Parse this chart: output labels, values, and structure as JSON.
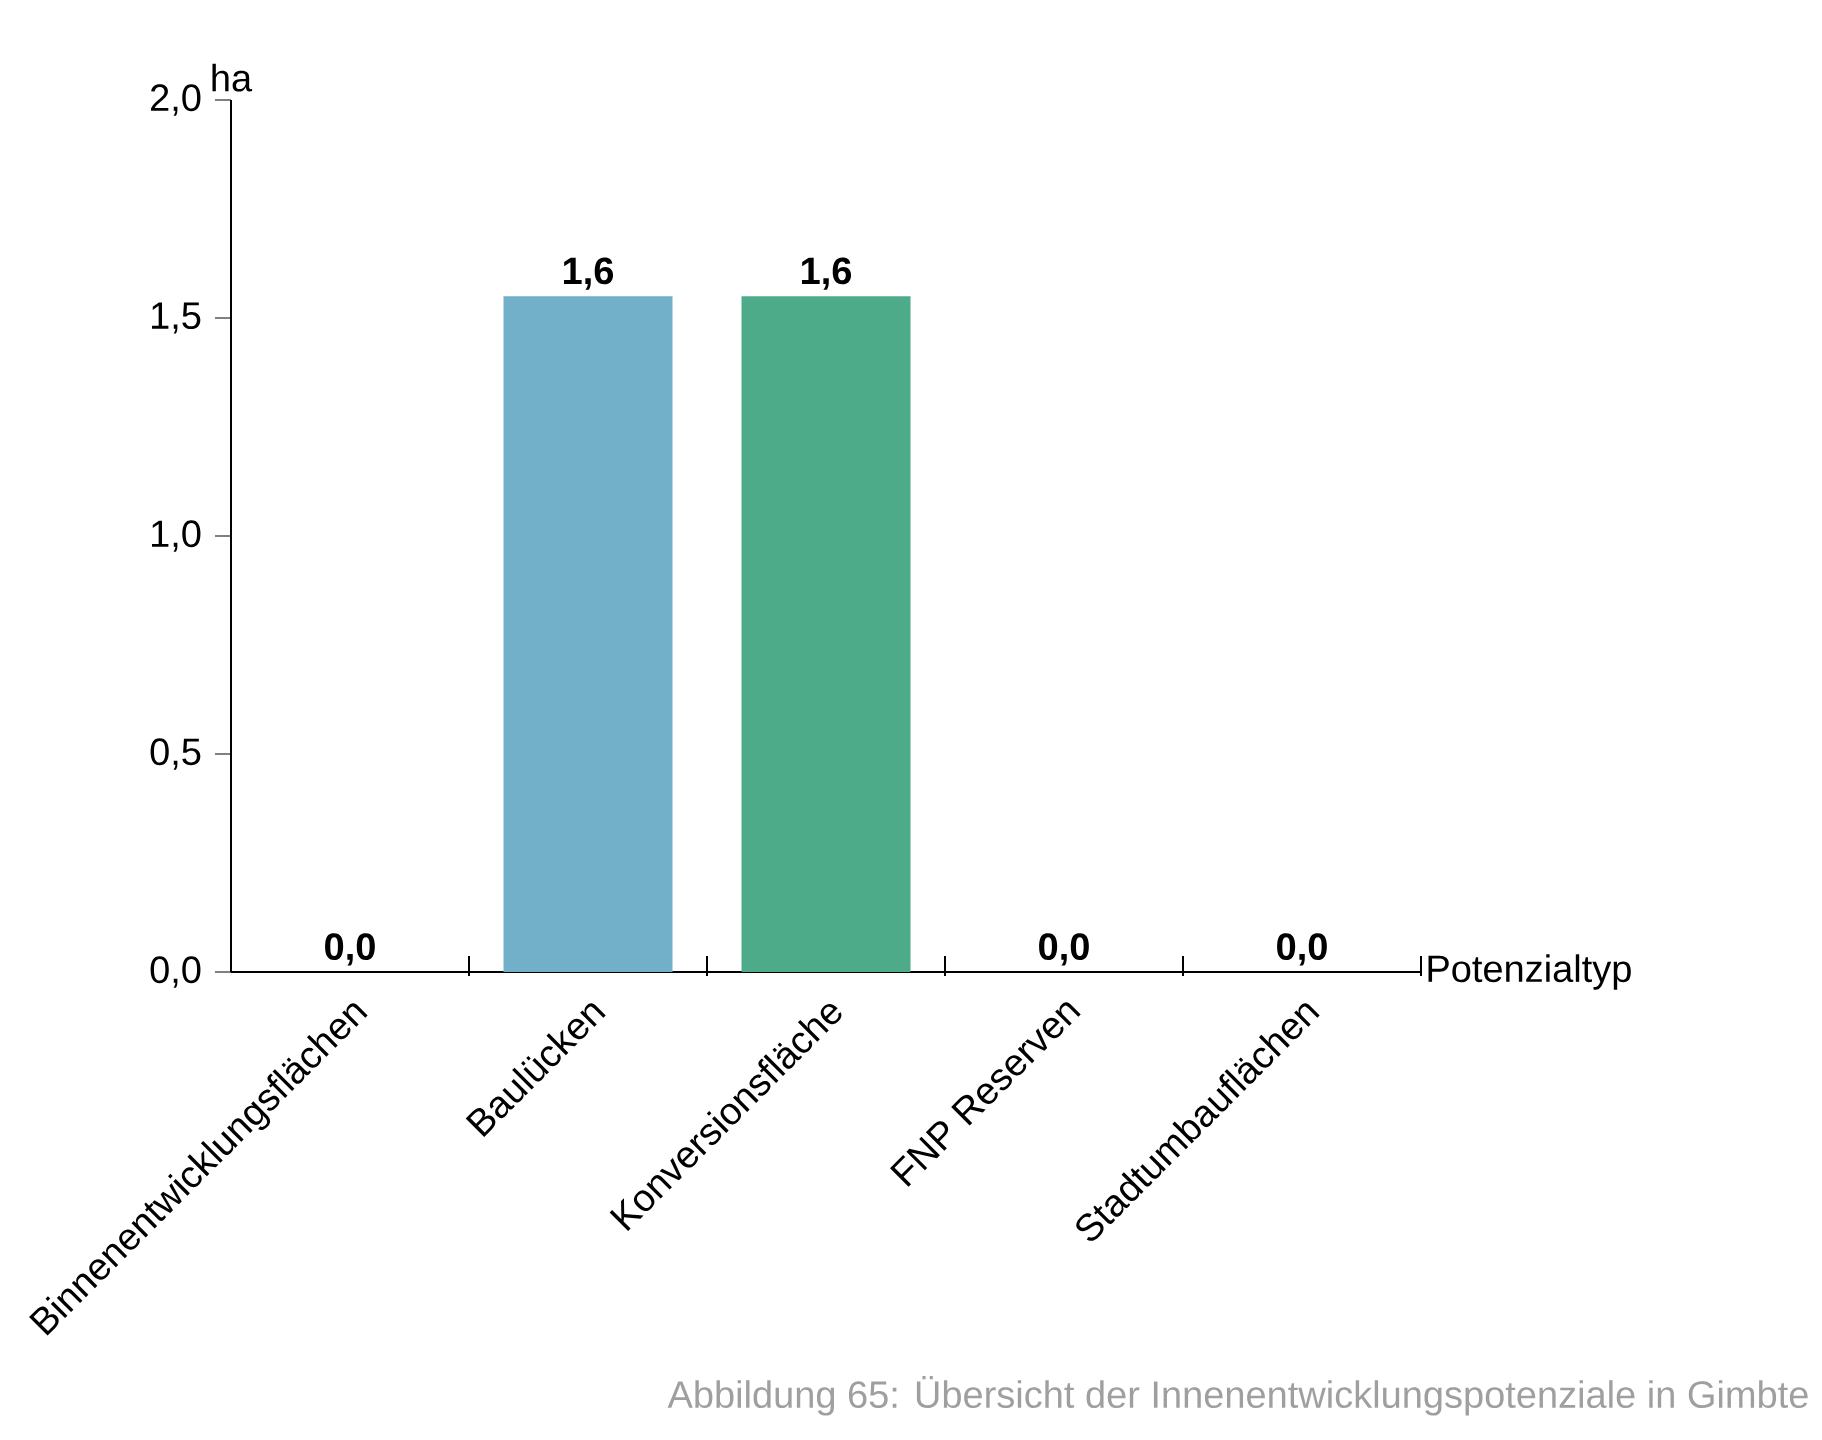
{
  "chart_data": {
    "type": "bar",
    "categories": [
      "Binnenentwicklungsflächen",
      "Baulücken",
      "Konversionsfläche",
      "FNP Reserven",
      "Stadtumbauflächen"
    ],
    "values": [
      0,
      1.55,
      1.55,
      0,
      0
    ],
    "colors": [
      "#72afc9",
      "#72afc9",
      "#4dab8a",
      "#72afc9",
      "#72afc9"
    ],
    "value_labels": [
      "0,0",
      "1,6",
      "1,6",
      "0,0",
      "0,0"
    ],
    "ylim": [
      0,
      2
    ],
    "yticks": [
      {
        "value": 0,
        "label": "0,0"
      },
      {
        "value": 0.5,
        "label": "0,5"
      },
      {
        "value": 1,
        "label": "1,0"
      },
      {
        "value": 1.5,
        "label": "1,5"
      },
      {
        "value": 2,
        "label": "2,0"
      }
    ],
    "xlabel": "Potenzialtyp",
    "ylabel": "ha",
    "annotations": [
      "Abbildung 65:  Übersicht der Innenentwicklungspotenziale in Gimbte"
    ]
  }
}
